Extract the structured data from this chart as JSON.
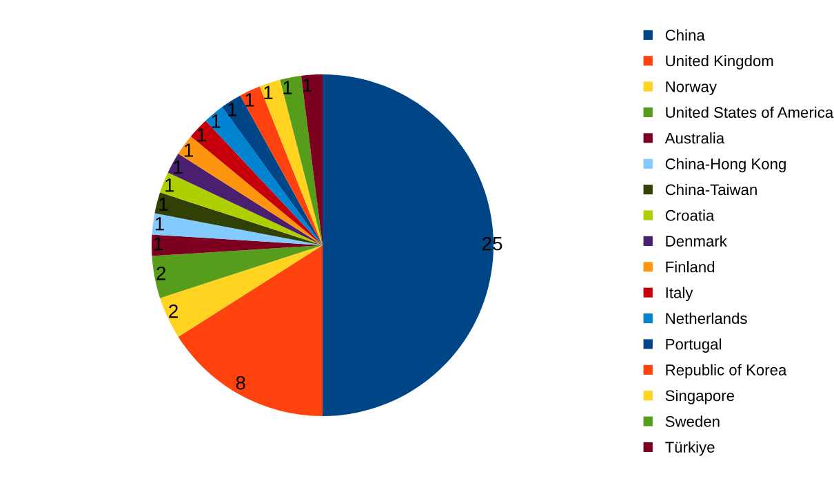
{
  "chart_data": {
    "type": "pie",
    "categories": [
      "China",
      "United Kingdom",
      "Norway",
      "United States of America",
      "Australia",
      "China-Hong Kong",
      "China-Taiwan",
      "Croatia",
      "Denmark",
      "Finland",
      "Italy",
      "Netherlands",
      "Portugal",
      "Republic of Korea",
      "Singapore",
      "Sweden",
      "Türkiye"
    ],
    "values": [
      25,
      8,
      2,
      2,
      1,
      1,
      1,
      1,
      1,
      1,
      1,
      1,
      1,
      1,
      1,
      1,
      1
    ],
    "colors": [
      "#004586",
      "#ff420e",
      "#ffd320",
      "#579d1c",
      "#7e0021",
      "#83caff",
      "#314004",
      "#aecf00",
      "#4b1f6f",
      "#ff950e",
      "#c5000b",
      "#0084d1",
      "#004586",
      "#ff420e",
      "#ffd320",
      "#579d1c",
      "#7e0021"
    ],
    "data_labels": true,
    "legend": "right"
  }
}
